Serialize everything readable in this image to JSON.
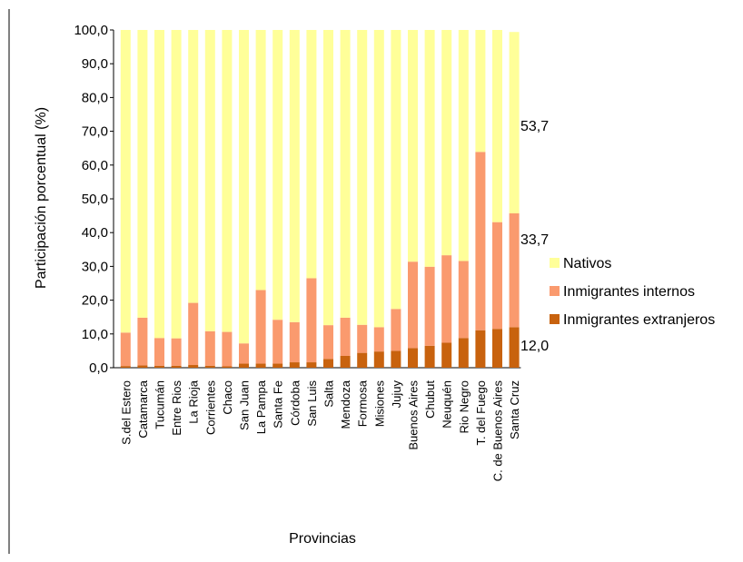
{
  "chart_data": {
    "type": "bar",
    "stacked": true,
    "xlabel": "Provincias",
    "ylabel": "Participación porcentual (%)",
    "ylim": [
      0,
      100
    ],
    "yticks": [
      "0,0",
      "10,0",
      "20,0",
      "30,0",
      "40,0",
      "50,0",
      "60,0",
      "70,0",
      "80,0",
      "90,0",
      "100,0"
    ],
    "categories": [
      "S.del Estero",
      "Catamarca",
      "Tucumán",
      "Entre Rios",
      "La Rioja",
      "Corrientes",
      "Chaco",
      "San Juan",
      "La Pampa",
      "Santa Fe",
      "Córdoba",
      "San Luis",
      "Salta",
      "Mendoza",
      "Formosa",
      "Misiones",
      "Jujuy",
      "Buenos Aires",
      "Chubut",
      "Neuquén",
      "Rio Negro",
      "T. del Fuego",
      "C. de Buenos Aires",
      "Santa Cruz"
    ],
    "series": [
      {
        "name": "Inmigrantes extranjeros",
        "color": "#c8620e",
        "values": [
          0.5,
          0.7,
          0.6,
          0.6,
          0.8,
          0.6,
          0.4,
          1.2,
          1.2,
          1.2,
          1.6,
          1.6,
          2.6,
          3.5,
          4.4,
          4.8,
          5.0,
          5.8,
          6.5,
          7.4,
          8.8,
          11.1,
          11.5,
          12.0
        ]
      },
      {
        "name": "Inmigrantes internos",
        "color": "#fa9a6e",
        "values": [
          9.9,
          14.1,
          8.2,
          8.1,
          18.4,
          10.2,
          10.2,
          6.0,
          21.8,
          13.0,
          11.9,
          24.9,
          10.0,
          11.3,
          8.3,
          7.2,
          12.4,
          25.6,
          23.4,
          25.9,
          22.8,
          52.8,
          31.6,
          33.7
        ]
      },
      {
        "name": "Nativos",
        "color": "#ffff99",
        "values": [
          89.6,
          85.2,
          91.2,
          91.3,
          80.8,
          89.2,
          89.4,
          92.8,
          77.0,
          85.8,
          86.5,
          73.5,
          87.4,
          85.2,
          87.3,
          88.0,
          82.6,
          68.6,
          70.1,
          66.7,
          68.4,
          36.1,
          56.9,
          53.7
        ]
      }
    ],
    "annotations": [
      "53,7",
      "33,7",
      "12,0"
    ],
    "legend_position": "right",
    "grid": false
  }
}
